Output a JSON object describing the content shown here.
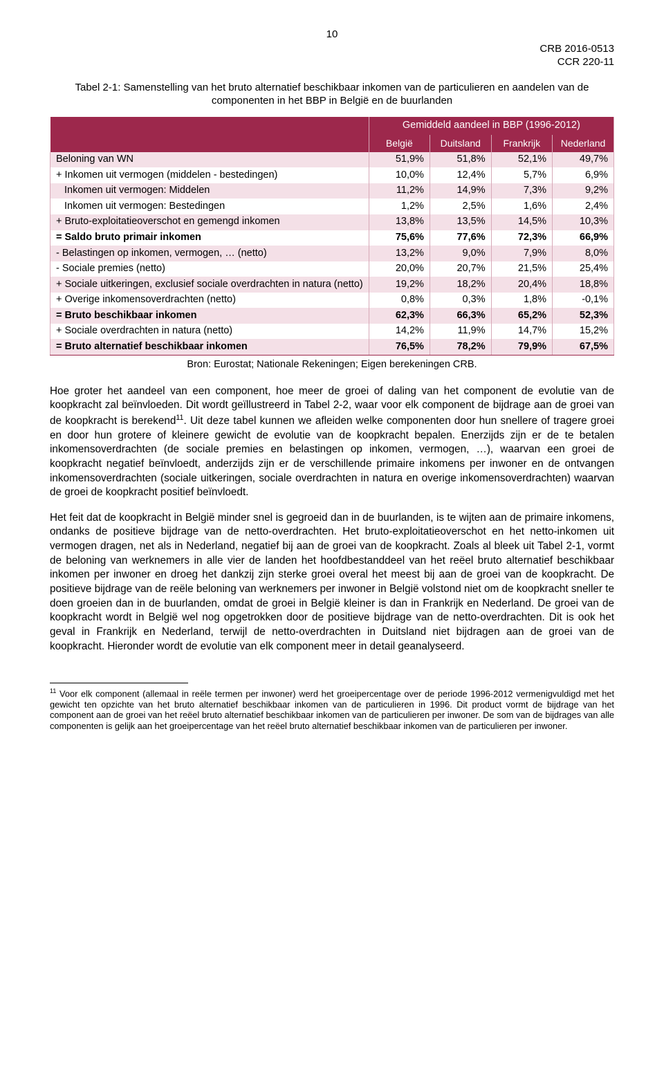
{
  "page_number": "10",
  "doc_id_line1": "CRB 2016-0513",
  "doc_id_line2": "CCR 220-11",
  "table_title": "Tabel 2-1: Samenstelling van het bruto alternatief beschikbaar inkomen van de particulieren en aandelen van de componenten in het BBP in België en de buurlanden",
  "group_header": "Gemiddeld aandeel in BBP (1996-2012)",
  "columns": [
    "België",
    "Duitsland",
    "Frankrijk",
    "Nederland"
  ],
  "rows": [
    {
      "label": "Beloning van WN",
      "vals": [
        "51,9%",
        "51,8%",
        "52,1%",
        "49,7%"
      ],
      "shade": true
    },
    {
      "label": "+ Inkomen uit vermogen (middelen - bestedingen)",
      "vals": [
        "10,0%",
        "12,4%",
        "5,7%",
        "6,9%"
      ]
    },
    {
      "label": "Inkomen uit vermogen: Middelen",
      "vals": [
        "11,2%",
        "14,9%",
        "7,3%",
        "9,2%"
      ],
      "shade": true,
      "indent": true
    },
    {
      "label": "Inkomen uit vermogen: Bestedingen",
      "vals": [
        "1,2%",
        "2,5%",
        "1,6%",
        "2,4%"
      ],
      "indent": true
    },
    {
      "label": "+ Bruto-exploitatieoverschot en gemengd inkomen",
      "vals": [
        "13,8%",
        "13,5%",
        "14,5%",
        "10,3%"
      ],
      "shade": true
    },
    {
      "label": "= Saldo bruto primair inkomen",
      "vals": [
        "75,6%",
        "77,6%",
        "72,3%",
        "66,9%"
      ],
      "bold": true
    },
    {
      "label": "- Belastingen op inkomen, vermogen, … (netto)",
      "vals": [
        "13,2%",
        "9,0%",
        "7,9%",
        "8,0%"
      ],
      "shade": true
    },
    {
      "label": "- Sociale premies (netto)",
      "vals": [
        "20,0%",
        "20,7%",
        "21,5%",
        "25,4%"
      ]
    },
    {
      "label": "+ Sociale uitkeringen, exclusief sociale overdrachten in natura (netto)",
      "vals": [
        "19,2%",
        "18,2%",
        "20,4%",
        "18,8%"
      ],
      "shade": true
    },
    {
      "label": "+ Overige inkomensoverdrachten (netto)",
      "vals": [
        "0,8%",
        "0,3%",
        "1,8%",
        "-0,1%"
      ]
    },
    {
      "label": "= Bruto beschikbaar inkomen",
      "vals": [
        "62,3%",
        "66,3%",
        "65,2%",
        "52,3%"
      ],
      "shade": true,
      "bold": true
    },
    {
      "label": "+ Sociale overdrachten in natura (netto)",
      "vals": [
        "14,2%",
        "11,9%",
        "14,7%",
        "15,2%"
      ]
    },
    {
      "label": "= Bruto alternatief beschikbaar inkomen",
      "vals": [
        "76,5%",
        "78,2%",
        "79,9%",
        "67,5%"
      ],
      "shade": true,
      "bold": true,
      "last": true
    }
  ],
  "source": "Bron: Eurostat; Nationale Rekeningen; Eigen berekeningen CRB.",
  "para1_a": "Hoe groter het aandeel van een component, hoe meer de groei of daling van het component de evolutie van de koopkracht zal beïnvloeden. Dit wordt geïllustreerd in Tabel 2-2, waar voor elk component de bijdrage aan de groei van de koopkracht is berekend",
  "para1_sup": "11",
  "para1_b": ". Uit deze tabel kunnen we afleiden welke componenten door hun snellere of tragere groei en door hun grotere of kleinere gewicht de evolutie van de koopkracht bepalen. Enerzijds zijn er de te betalen inkomensoverdrachten (de sociale premies en belastingen op inkomen, vermogen, …), waarvan een groei de koopkracht negatief beïnvloedt, anderzijds zijn er de verschillende primaire inkomens per inwoner en de ontvangen inkomensoverdrachten (sociale uitkeringen, sociale overdrachten in natura en overige inkomensoverdrachten) waarvan de groei de koopkracht positief beïnvloedt.",
  "para2": "Het feit dat de koopkracht in België minder snel is gegroeid dan in de buurlanden, is te wijten aan de primaire inkomens, ondanks de positieve bijdrage van de netto-overdrachten. Het bruto-exploitatieoverschot en het netto-inkomen uit vermogen dragen, net als in Nederland, negatief bij aan de groei van de koopkracht. Zoals al bleek uit Tabel 2-1, vormt de beloning van werknemers in alle vier de landen het hoofdbestanddeel van het reëel bruto alternatief beschikbaar inkomen per inwoner en droeg het dankzij zijn sterke groei overal het meest bij aan de groei van de koopkracht. De positieve bijdrage van de reële beloning van werknemers per inwoner in België volstond niet om de koopkracht sneller te doen groeien dan in de buurlanden, omdat de groei in België kleiner is dan in Frankrijk en Nederland. De groei van de koopkracht wordt in België wel nog opgetrokken door de positieve bijdrage van de netto-overdrachten. Dit is ook het geval in Frankrijk en Nederland, terwijl de netto-overdrachten in Duitsland niet bijdragen aan de groei van de koopkracht. Hieronder wordt de evolutie van elk component meer in detail geanalyseerd.",
  "footnote_num": "11",
  "footnote_text": " Voor elk component (allemaal in reële termen per inwoner) werd het groeipercentage over de periode 1996-2012 vermenigvuldigd met het gewicht ten opzichte van het bruto alternatief beschikbaar inkomen van de particulieren in 1996. Dit product vormt de bijdrage van het component aan de groei van het reëel bruto alternatief beschikbaar inkomen van de particulieren per inwoner. De som van de bijdrages van alle componenten is gelijk aan het groeipercentage van het reëel bruto alternatief beschikbaar inkomen van de particulieren per inwoner."
}
